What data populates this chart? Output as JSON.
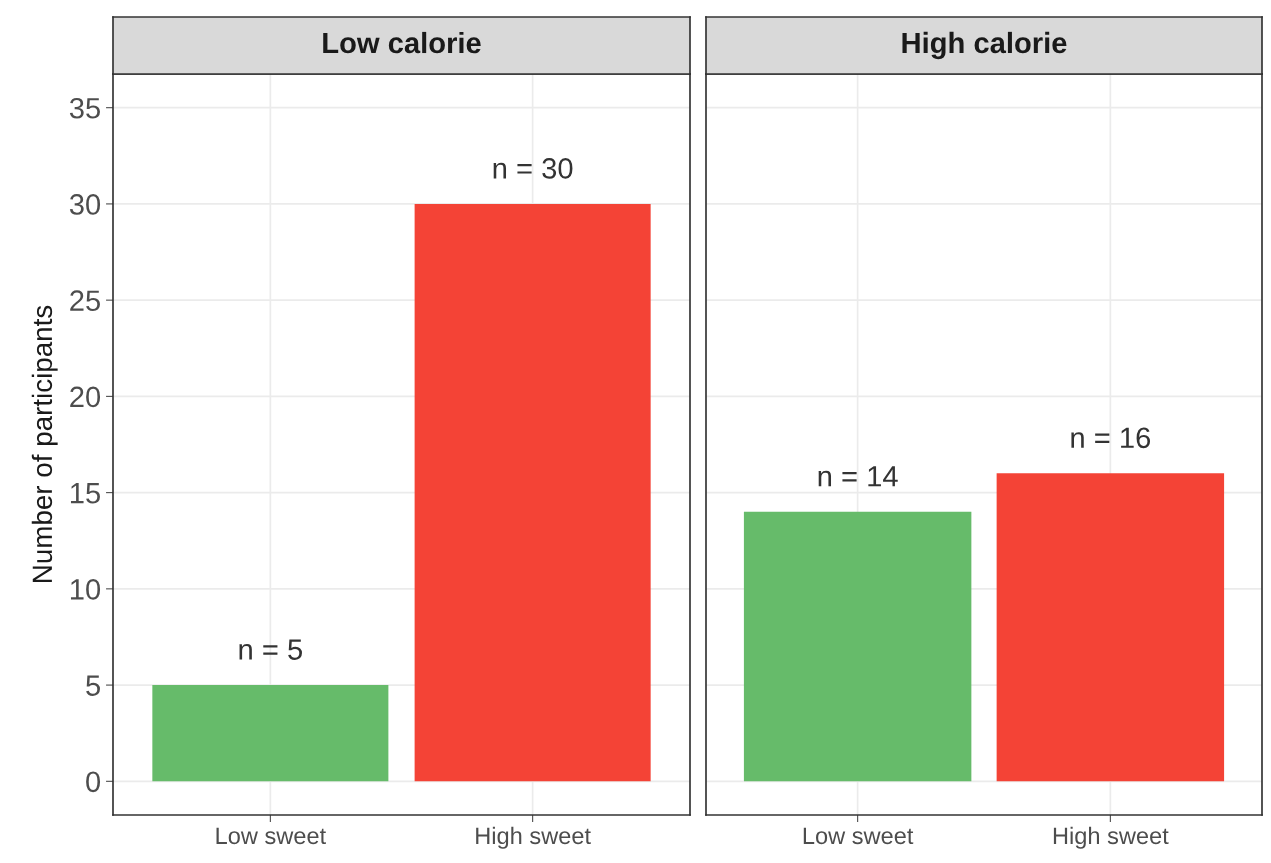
{
  "chart_data": [
    {
      "type": "bar",
      "title": "Low calorie",
      "ylabel": "Number of participants",
      "categories": [
        "Low sweet",
        "High sweet"
      ],
      "values": [
        5,
        30
      ],
      "colors": [
        "#66bb6a",
        "#f44336"
      ],
      "value_labels": [
        "n = 5",
        "n = 30"
      ],
      "ylim": [
        -1.75,
        36.75
      ],
      "yticks": [
        0,
        5,
        10,
        15,
        20,
        25,
        30,
        35
      ],
      "grid": true
    },
    {
      "type": "bar",
      "title": "High calorie",
      "categories": [
        "Low sweet",
        "High sweet"
      ],
      "values": [
        14,
        16
      ],
      "colors": [
        "#66bb6a",
        "#f44336"
      ],
      "value_labels": [
        "n = 14",
        "n = 16"
      ],
      "ylim": [
        -1.75,
        36.75
      ],
      "yticks": [
        0,
        5,
        10,
        15,
        20,
        25,
        30,
        35
      ],
      "grid": true,
      "tick_labels": "x"
    }
  ]
}
